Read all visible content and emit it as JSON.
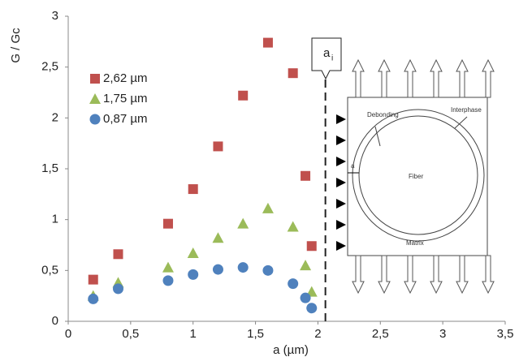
{
  "chart_data": {
    "type": "scatter",
    "ylabel": "G / Gc",
    "xlabel": "a (µm)",
    "xlim": [
      0,
      3.5
    ],
    "ylim": [
      0,
      3
    ],
    "xticks": [
      0,
      {
        "value": 0.5,
        "label": "0,5"
      },
      1,
      {
        "value": 1.5,
        "label": "1,5"
      },
      2,
      {
        "value": 2.5,
        "label": "2,5"
      },
      3,
      {
        "value": 3.5,
        "label": "3,5"
      }
    ],
    "yticks": [
      0,
      {
        "value": 0.5,
        "label": "0,5"
      },
      1,
      {
        "value": 1.5,
        "label": "1,5"
      },
      2,
      {
        "value": 2.5,
        "label": "2,5"
      },
      3
    ],
    "legend": "upper left",
    "x": [
      0.2,
      0.4,
      0.8,
      1.0,
      1.2,
      1.4,
      1.6,
      1.8,
      1.9,
      1.95
    ],
    "series": [
      {
        "name": "2,62 µm",
        "color": "#c0504d",
        "marker": "square",
        "values": [
          0.41,
          0.66,
          0.96,
          1.3,
          1.72,
          2.22,
          2.74,
          2.44,
          1.43,
          0.74
        ]
      },
      {
        "name": "1,75 µm",
        "color": "#9bbb59",
        "marker": "triangle",
        "values": [
          0.25,
          0.38,
          0.53,
          0.67,
          0.82,
          0.96,
          1.11,
          0.93,
          0.55,
          0.29
        ]
      },
      {
        "name": "0,87 µm",
        "color": "#4f81bd",
        "marker": "circle",
        "values": [
          0.22,
          0.32,
          0.4,
          0.46,
          0.51,
          0.53,
          0.5,
          0.37,
          0.23,
          0.13
        ]
      }
    ],
    "vline": 2.06,
    "callout": {
      "main": "a",
      "sub": "i"
    },
    "inset": {
      "debonding": "Debonding",
      "interphase": "Interphase",
      "fiber": "Fiber",
      "matrix": "Matrix",
      "crack": "a"
    }
  }
}
